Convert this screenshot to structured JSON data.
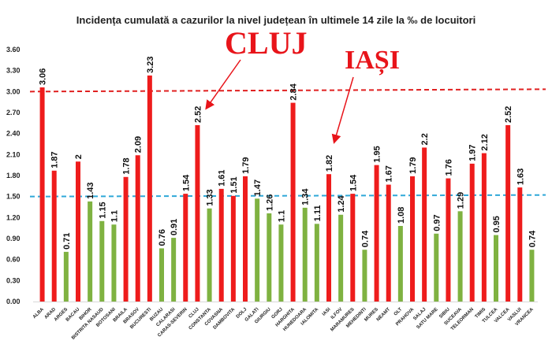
{
  "chart_data": {
    "type": "bar",
    "title": "Incidența cumulată a cazurilor la nivel județean în ultimele 14 zile la ‰ de locuitori",
    "xlabel": "",
    "ylabel": "",
    "ylim": [
      0,
      3.6
    ],
    "yticks": [
      "0.00",
      "0.30",
      "0.60",
      "0.90",
      "1.20",
      "1.50",
      "1.80",
      "2.10",
      "2.40",
      "2.70",
      "3.00",
      "3.30",
      "3.60"
    ],
    "grid": false,
    "thresholds": [
      {
        "value": 3.0,
        "color": "#e02020",
        "style": "dashed"
      },
      {
        "value": 1.5,
        "color": "#2fa8d8",
        "style": "dashed"
      }
    ],
    "colors": {
      "above": "#ee1c1c",
      "below": "#7fb241"
    },
    "categories": [
      "ALBA",
      "ARAD",
      "ARGES",
      "BACAU",
      "BIHOR",
      "BISTRITA NASAUD",
      "BOTOSANI",
      "BRAILA",
      "BRASOV",
      "BUCURESTI",
      "BUZAU",
      "CALARASI",
      "CARAS-SEVERIN",
      "CLUJ",
      "CONSTANTA",
      "COVASNA",
      "DAMBOVITA",
      "DOLJ",
      "GALATI",
      "GIURGIU",
      "GORJ",
      "HARGHITA",
      "HUNEDOARA",
      "IALOMITA",
      "IASI",
      "ILFOV",
      "MARAMURES",
      "MEHEDINTI",
      "MURES",
      "NEAMT",
      "OLT",
      "PRAHOVA",
      "SALAJ",
      "SATU MARE",
      "SIBIU",
      "SUCEAVA",
      "TELEORMAN",
      "TIMIS",
      "TULCEA",
      "VALCEA",
      "VASLUI",
      "VRANCEA"
    ],
    "values": [
      3.06,
      1.87,
      0.71,
      2.0,
      1.43,
      1.15,
      1.1,
      1.78,
      2.09,
      3.23,
      0.76,
      0.91,
      1.54,
      2.52,
      1.33,
      1.61,
      1.51,
      1.79,
      1.47,
      1.26,
      1.1,
      2.84,
      1.34,
      1.11,
      1.82,
      1.24,
      1.54,
      0.74,
      1.95,
      1.67,
      1.08,
      1.79,
      2.2,
      0.97,
      1.76,
      1.29,
      1.97,
      2.12,
      0.95,
      2.52,
      1.63,
      0.74
    ],
    "value_labels": [
      "3.06",
      "1.87",
      "0.71",
      "2",
      "1.43",
      "1.15",
      "1.1",
      "1.78",
      "2.09",
      "3.23",
      "0.76",
      "0.91",
      "1.54",
      "2.52",
      "1.33",
      "1.61",
      "1.51",
      "1.79",
      "1.47",
      "1.26",
      "1.1",
      "2.84",
      "1.34",
      "1.11",
      "1.82",
      "1.24",
      "1.54",
      "0.74",
      "1.95",
      "1.67",
      "1.08",
      "1.79",
      "2.2",
      "0.97",
      "1.76",
      "1.29",
      "1.97",
      "2.12",
      "0.95",
      "2.52",
      "1.63",
      "0.74"
    ],
    "annotations": [
      {
        "text": "CLUJ",
        "target": "CLUJ"
      },
      {
        "text": "IAȘI",
        "target": "IASI"
      }
    ]
  }
}
